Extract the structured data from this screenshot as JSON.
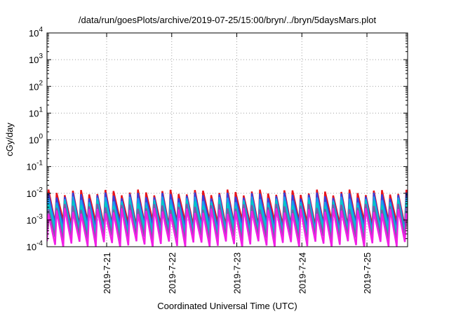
{
  "chart_data": {
    "type": "line",
    "title": "/data/run/goesPlots/archive/2019-07-25/15:00/bryn/../bryn/5daysMars.plot",
    "xlabel": "Coordinated Universal Time (UTC)",
    "ylabel": "cGy/day",
    "yscale": "log",
    "ylim": [
      0.0001,
      10000
    ],
    "xlim": [
      "2019-07-20 02:00",
      "2019-07-25 15:00"
    ],
    "grid": true,
    "legend": "none",
    "y_ticks": [
      {
        "base": "10",
        "exp": "4"
      },
      {
        "base": "10",
        "exp": "3"
      },
      {
        "base": "10",
        "exp": "2"
      },
      {
        "base": "10",
        "exp": "1"
      },
      {
        "base": "10",
        "exp": "0"
      },
      {
        "base": "10",
        "exp": "-1"
      },
      {
        "base": "10",
        "exp": "-2"
      },
      {
        "base": "10",
        "exp": "-3"
      },
      {
        "base": "10",
        "exp": "-4"
      }
    ],
    "x_ticks": [
      "2019-7-21",
      "2019-7-22",
      "2019-7-23",
      "2019-7-24",
      "2019-7-25"
    ],
    "cycle_hours": 3,
    "series": [
      {
        "color": "#e8141b",
        "peak": 0.011,
        "trough": 0.0007
      },
      {
        "color": "#3a3fd9",
        "peak": 0.0085,
        "trough": 0.0005
      },
      {
        "color": "#1b9bf0",
        "peak": 0.006,
        "trough": 0.0004
      },
      {
        "color": "#00c8c8",
        "peak": 0.0045,
        "trough": 0.0003
      },
      {
        "color": "#7a5aa8",
        "peak": 0.0032,
        "trough": 0.0002
      },
      {
        "color": "#f21ee6",
        "peak": 0.0022,
        "trough": 0.00012
      }
    ]
  }
}
